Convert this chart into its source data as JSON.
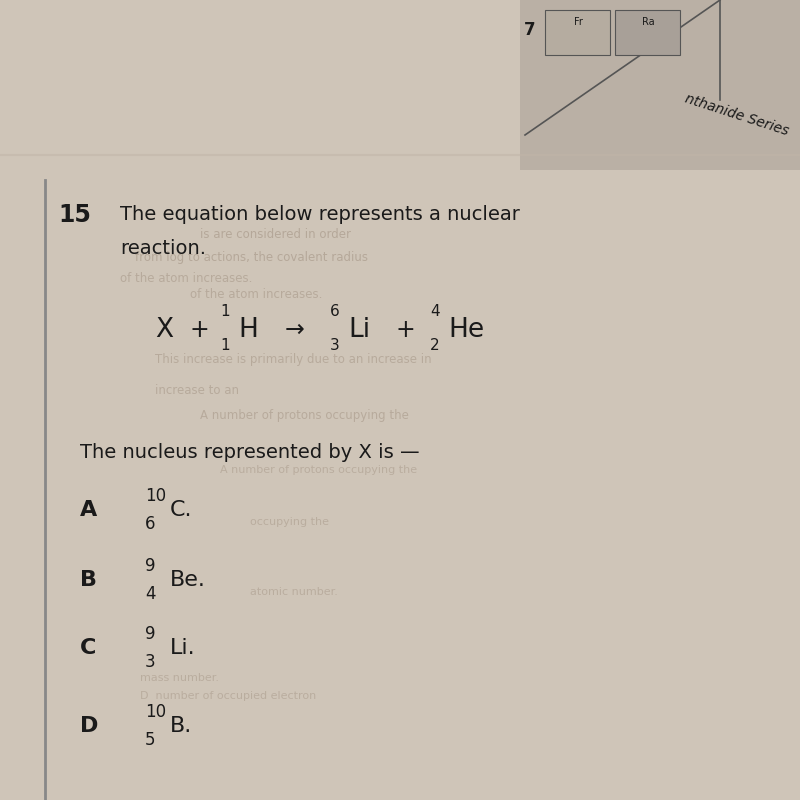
{
  "question_number": "15",
  "intro_text_line1": "The equation below represents a nuclear",
  "intro_text_line2": "reaction.",
  "nucleus_text": "The nucleus represented by X is —",
  "bg_color": "#cfc5b8",
  "text_color": "#1a1a1a",
  "faded_text_color": "#a09080",
  "answer_A_letter": "A",
  "answer_A_super": "10",
  "answer_A_sub": "6",
  "answer_A_element": "C.",
  "answer_B_letter": "B",
  "answer_B_super": "9",
  "answer_B_sub": "4",
  "answer_B_element": "Be.",
  "answer_C_letter": "C",
  "answer_C_super": "9",
  "answer_C_sub": "3",
  "answer_C_element": "Li.",
  "answer_D_letter": "D",
  "answer_D_super": "10",
  "answer_D_sub": "5",
  "answer_D_element": "B.",
  "top_right_text": "nthanide Series",
  "top_number": "7"
}
